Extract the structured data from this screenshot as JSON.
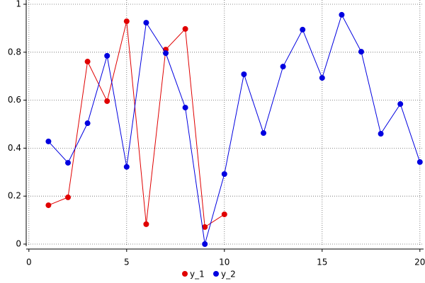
{
  "chart_data": {
    "type": "line",
    "x": [
      1,
      2,
      3,
      4,
      5,
      6,
      7,
      8,
      9,
      10,
      11,
      12,
      13,
      14,
      15,
      16,
      17,
      18,
      19,
      20
    ],
    "series": [
      {
        "name": "y_1",
        "color": "#e00000",
        "values": [
          0.162,
          0.195,
          0.761,
          0.596,
          0.929,
          0.083,
          0.811,
          0.897,
          0.071,
          0.124,
          null,
          null,
          null,
          null,
          null,
          null,
          null,
          null,
          null,
          null
        ]
      },
      {
        "name": "y_2",
        "color": "#0000e0",
        "values": [
          0.428,
          0.339,
          0.504,
          0.785,
          0.322,
          0.923,
          0.796,
          0.569,
          0.0,
          0.292,
          0.708,
          0.463,
          0.74,
          0.894,
          0.693,
          0.956,
          0.802,
          0.46,
          0.584,
          0.342
        ]
      }
    ],
    "xlim": [
      0,
      20
    ],
    "xticks": [
      0,
      5,
      10,
      15,
      20
    ],
    "ylim": [
      0,
      1
    ],
    "yticks": [
      0,
      0.2,
      0.4,
      0.6,
      0.8,
      1
    ],
    "grid": true,
    "legend": "bottom"
  }
}
